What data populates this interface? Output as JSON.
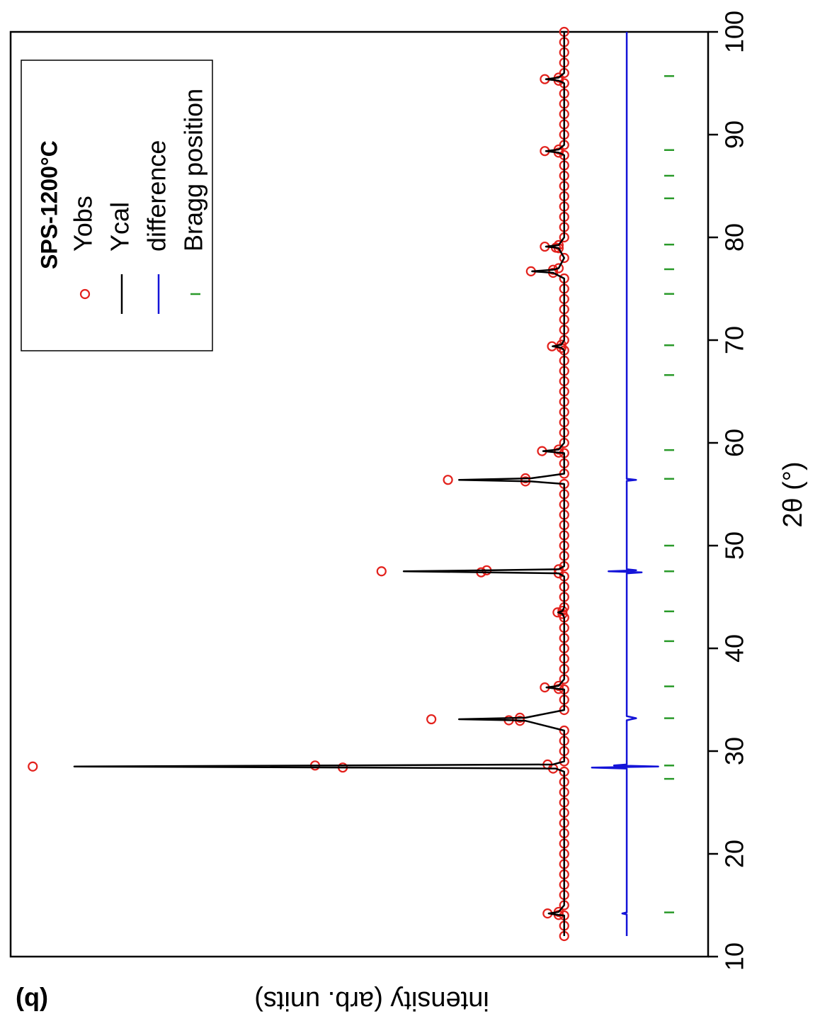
{
  "chart_data": {
    "type": "line",
    "panel_label": "(b)",
    "legend_title": "SPS-1200°C",
    "xlabel": "2θ (°)",
    "ylabel": "intensity (arb. units)",
    "xlim": [
      10,
      100
    ],
    "ylim": [
      -26,
      100
    ],
    "xticks": [
      10,
      20,
      30,
      40,
      50,
      60,
      70,
      80,
      90,
      100
    ],
    "x": [
      12,
      13,
      14,
      14.05,
      14.2,
      14.35,
      15,
      16,
      17,
      18,
      19,
      20,
      21,
      22,
      23,
      24,
      25,
      26,
      27,
      28,
      28.3,
      28.4,
      28.5,
      28.6,
      28.7,
      29,
      30,
      31,
      32,
      32.95,
      33,
      33.1,
      33.25,
      34,
      35,
      36,
      36.05,
      36.2,
      36.35,
      37,
      38,
      39,
      40,
      41,
      42,
      43,
      43.35,
      43.5,
      43.65,
      44,
      45,
      46,
      47,
      47.3,
      47.4,
      47.5,
      47.6,
      47.7,
      48,
      49,
      50,
      51,
      52,
      53,
      54,
      55,
      56,
      56.25,
      56.4,
      56.55,
      57,
      58,
      59,
      59.05,
      59.2,
      59.35,
      60,
      61,
      62,
      63,
      64,
      65,
      66,
      67,
      68,
      69,
      69.25,
      69.4,
      69.55,
      70,
      71,
      72,
      73,
      74,
      75,
      76,
      76.55,
      76.7,
      76.85,
      77,
      78,
      78.95,
      79,
      79.1,
      79.25,
      80,
      81,
      82,
      83,
      84,
      85,
      86,
      87,
      88,
      88.25,
      88.4,
      88.55,
      89,
      90,
      91,
      92,
      93,
      94,
      95,
      95.25,
      95.4,
      95.55,
      96,
      97,
      98,
      99,
      100
    ],
    "series": [
      {
        "name": "Yobs",
        "color": "#e3211c",
        "marker": "circle",
        "values": [
          0,
          0,
          0,
          1,
          3,
          1,
          0,
          0,
          0,
          0,
          0,
          0,
          0,
          0,
          0,
          0,
          0,
          0,
          0,
          0,
          2,
          40,
          96,
          45,
          3,
          0,
          0,
          0,
          0,
          8,
          10,
          24,
          8,
          0,
          0,
          0,
          1,
          3.5,
          1,
          0,
          0,
          0,
          0,
          0,
          0,
          0,
          0.3,
          1.2,
          0.3,
          0,
          0,
          0,
          0,
          1,
          15,
          33,
          14,
          1,
          0,
          0,
          0,
          0,
          0,
          0,
          0,
          0,
          0,
          7,
          21,
          7,
          0,
          0,
          0,
          1,
          4,
          1,
          0,
          0,
          0,
          0,
          0,
          0,
          0,
          0,
          0,
          0,
          0.5,
          2.2,
          0.5,
          0,
          0,
          0,
          0,
          0,
          0,
          0,
          2,
          6,
          2,
          1,
          0,
          1,
          1.5,
          3.5,
          1,
          0,
          0,
          0,
          0,
          0,
          0,
          0,
          0,
          0,
          1,
          3.5,
          1,
          0,
          0,
          0,
          0,
          0,
          0,
          0,
          1,
          3.5,
          1,
          0,
          0,
          0,
          0,
          0
        ]
      },
      {
        "name": "Ycal",
        "color": "#000000",
        "values": [
          0,
          0,
          0,
          1,
          2.8,
          1,
          0,
          0,
          0,
          0,
          0,
          0,
          0,
          0,
          0,
          0,
          0,
          0,
          0,
          0,
          1.5,
          38,
          88.5,
          42,
          2,
          0,
          0,
          0,
          0,
          7,
          9,
          19,
          7,
          0,
          0,
          0,
          1,
          3.2,
          1,
          0,
          0,
          0,
          0,
          0,
          0,
          0,
          0.3,
          1.1,
          0.3,
          0,
          0,
          0,
          0,
          1,
          14,
          29,
          13,
          1,
          0,
          0,
          0,
          0,
          0,
          0,
          0,
          0,
          0,
          6,
          19,
          6,
          0,
          0,
          0,
          1,
          3.8,
          1,
          0,
          0,
          0,
          0,
          0,
          0,
          0,
          0,
          0,
          0,
          0.5,
          2.1,
          0.5,
          0,
          0,
          0,
          0,
          0,
          0,
          0,
          2,
          5.8,
          2,
          1,
          0,
          1,
          1.5,
          3.3,
          1,
          0,
          0,
          0,
          0,
          0,
          0,
          0,
          0,
          0,
          1,
          3.3,
          1,
          0,
          0,
          0,
          0,
          0,
          0,
          0,
          1,
          3.3,
          1,
          0,
          0,
          0,
          0,
          0
        ]
      },
      {
        "name": "difference",
        "color": "#1414d8",
        "x": [
          12,
          14.1,
          14.2,
          14.3,
          28.3,
          28.4,
          28.5,
          28.6,
          28.7,
          33,
          33.2,
          33.4,
          47.3,
          47.4,
          47.5,
          47.6,
          47.7,
          56.3,
          56.4,
          56.5,
          100
        ],
        "values": [
          -11.3,
          -11.3,
          -10.5,
          -11.3,
          -11.3,
          -5,
          -17,
          -9,
          -11.3,
          -11.3,
          -13,
          -11.3,
          -11.3,
          -14,
          -8,
          -13,
          -11.3,
          -11.3,
          -13,
          -11.3,
          -11.3
        ]
      },
      {
        "name": "Bragg position",
        "color": "#2a9a2a",
        "marker": "tick",
        "x": [
          14.3,
          27.3,
          28.6,
          33.2,
          36.3,
          40.7,
          43.6,
          47.5,
          50,
          56.5,
          59.3,
          66.6,
          69.5,
          74.5,
          76.9,
          79.3,
          83.8,
          86,
          88.5,
          95.7
        ]
      }
    ]
  }
}
